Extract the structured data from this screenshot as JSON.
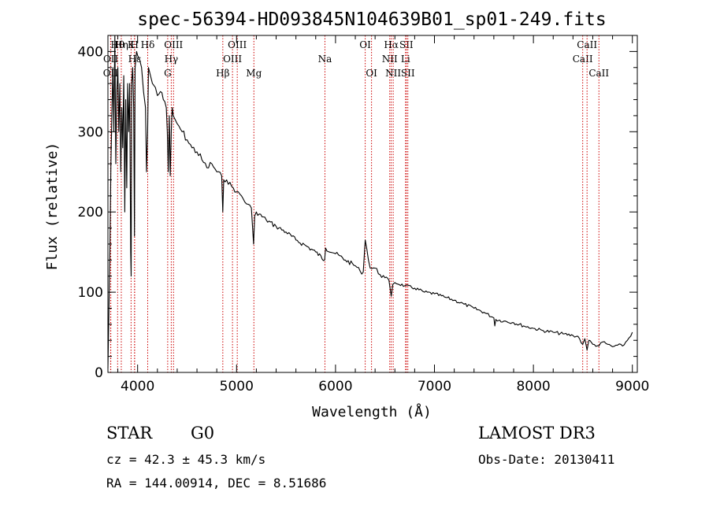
{
  "chart_data": {
    "type": "line",
    "title": "spec-56394-HD093845N104639B01_sp01-249.fits",
    "xlabel": "Wavelength (Å)",
    "ylabel": "Flux (relative)",
    "xlim": [
      3700,
      9050
    ],
    "ylim": [
      0,
      420
    ],
    "xticks": [
      4000,
      5000,
      6000,
      7000,
      8000,
      9000
    ],
    "yticks": [
      0,
      100,
      200,
      300,
      400
    ],
    "series": [
      {
        "name": "flux",
        "x": [
          3700,
          3710,
          3720,
          3730,
          3740,
          3750,
          3760,
          3770,
          3780,
          3790,
          3800,
          3810,
          3820,
          3830,
          3840,
          3850,
          3860,
          3870,
          3880,
          3890,
          3900,
          3910,
          3920,
          3930,
          3935,
          3940,
          3950,
          3960,
          3968,
          3975,
          3990,
          4000,
          4020,
          4040,
          4060,
          4080,
          4090,
          4101,
          4110,
          4130,
          4150,
          4180,
          4200,
          4230,
          4260,
          4290,
          4300,
          4310,
          4320,
          4330,
          4340,
          4350,
          4360,
          4380,
          4400,
          4450,
          4500,
          4550,
          4600,
          4650,
          4700,
          4750,
          4800,
          4850,
          4861,
          4870,
          4900,
          4950,
          5000,
          5050,
          5100,
          5150,
          5172,
          5183,
          5200,
          5300,
          5400,
          5500,
          5600,
          5700,
          5800,
          5890,
          5900,
          6000,
          6100,
          6200,
          6250,
          6280,
          6300,
          6350,
          6400,
          6450,
          6500,
          6540,
          6563,
          6580,
          6600,
          6700,
          6800,
          6900,
          7000,
          7100,
          7200,
          7300,
          7400,
          7500,
          7600,
          7610,
          7620,
          7700,
          7800,
          7900,
          8000,
          8100,
          8200,
          8300,
          8400,
          8450,
          8498,
          8520,
          8542,
          8560,
          8600,
          8662,
          8700,
          8750,
          8800,
          8850,
          8900,
          8950,
          9000
        ],
        "values": [
          5,
          80,
          150,
          260,
          320,
          380,
          300,
          420,
          260,
          350,
          380,
          300,
          360,
          250,
          330,
          280,
          370,
          200,
          340,
          230,
          360,
          300,
          360,
          150,
          120,
          360,
          380,
          330,
          170,
          380,
          400,
          395,
          390,
          380,
          350,
          330,
          250,
          300,
          380,
          370,
          360,
          355,
          345,
          350,
          340,
          330,
          300,
          250,
          320,
          245,
          300,
          330,
          320,
          315,
          310,
          300,
          290,
          280,
          275,
          265,
          255,
          260,
          250,
          245,
          200,
          240,
          240,
          232,
          225,
          220,
          210,
          205,
          160,
          195,
          200,
          190,
          182,
          175,
          165,
          158,
          150,
          140,
          155,
          148,
          140,
          133,
          126,
          125,
          165,
          130,
          130,
          122,
          118,
          115,
          95,
          110,
          112,
          108,
          105,
          100,
          98,
          94,
          90,
          85,
          80,
          75,
          68,
          58,
          66,
          64,
          62,
          58,
          55,
          52,
          50,
          48,
          46,
          45,
          35,
          42,
          28,
          40,
          35,
          33,
          38,
          35,
          32,
          34,
          33,
          40,
          50
        ]
      }
    ],
    "lines": [
      {
        "label": "OII",
        "x": 3727,
        "row": 3
      },
      {
        "label": "OII",
        "x": 3729,
        "row": 2
      },
      {
        "label": "Hθ",
        "x": 3798,
        "row": 1
      },
      {
        "label": "Hη",
        "x": 3835,
        "row": 1
      },
      {
        "label": "K",
        "x": 3934,
        "row": 1
      },
      {
        "label": "H",
        "x": 3969,
        "row": 1
      },
      {
        "label": "Hε",
        "x": 3970,
        "row": 2
      },
      {
        "label": "Hδ",
        "x": 4102,
        "row": 1
      },
      {
        "label": "G",
        "x": 4304,
        "row": 3
      },
      {
        "label": "Hγ",
        "x": 4340,
        "row": 2
      },
      {
        "label": "OIII",
        "x": 4363,
        "row": 1
      },
      {
        "label": "Hβ",
        "x": 4861,
        "row": 3
      },
      {
        "label": "OIII",
        "x": 4959,
        "row": 2
      },
      {
        "label": "OIII",
        "x": 5007,
        "row": 1
      },
      {
        "label": "Mg",
        "x": 5175,
        "row": 3
      },
      {
        "label": "Na",
        "x": 5893,
        "row": 2
      },
      {
        "label": "OI",
        "x": 6300,
        "row": 1
      },
      {
        "label": "OI",
        "x": 6364,
        "row": 3
      },
      {
        "label": "NII",
        "x": 6548,
        "row": 2
      },
      {
        "label": "Hα",
        "x": 6563,
        "row": 1
      },
      {
        "label": "NII",
        "x": 6583,
        "row": 3
      },
      {
        "label": "Li",
        "x": 6708,
        "row": 2
      },
      {
        "label": "SII",
        "x": 6716,
        "row": 1
      },
      {
        "label": "SII",
        "x": 6731,
        "row": 3
      },
      {
        "label": "CaII",
        "x": 8498,
        "row": 2
      },
      {
        "label": "CaII",
        "x": 8542,
        "row": 1
      },
      {
        "label": "CaII",
        "x": 8662,
        "row": 3
      }
    ]
  },
  "info": {
    "class_label": "STAR",
    "subclass": "G0",
    "survey": "LAMOST DR3",
    "cz": "cz = 42.3 ± 45.3 km/s",
    "obs_date": "Obs-Date: 20130411",
    "coords": "RA = 144.00914, DEC =   8.51686"
  },
  "colors": {
    "line_marker": "#cc0000",
    "spectrum": "#000000"
  }
}
